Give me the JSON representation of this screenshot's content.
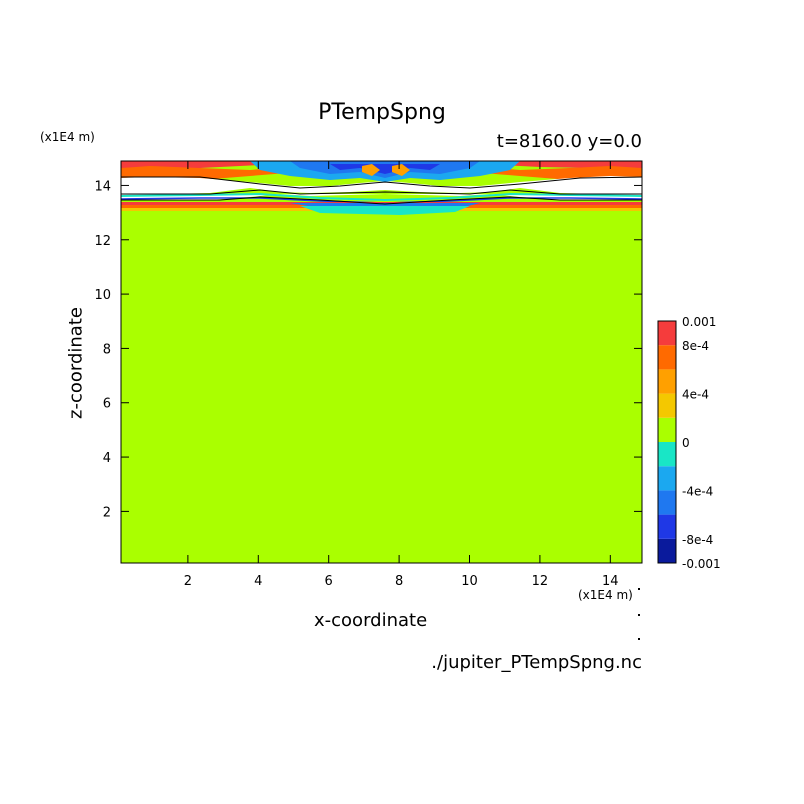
{
  "title": "PTempSpng",
  "subtitle": "t=8160.0 y=0.0",
  "z_unit": "(x1E4 m)",
  "x_unit": "(x1E4 m)",
  "source": "./jupiter_PTempSpng.nc",
  "chart_data": {
    "type": "heatmap",
    "title": "PTempSpng",
    "subtitle": "t=8160.0 y=0.0",
    "xlabel": "x-coordinate",
    "ylabel": "z-coordinate",
    "x_unit": "(x1E4 m)",
    "y_unit": "(x1E4 m)",
    "xlim": [
      0.1,
      14.9
    ],
    "ylim": [
      0.1,
      14.9
    ],
    "x_ticks": [
      2,
      4,
      6,
      8,
      10,
      12,
      14
    ],
    "y_ticks": [
      2,
      4,
      6,
      8,
      10,
      12,
      14
    ],
    "grid": false,
    "background_value": 0,
    "levels": [
      -0.001,
      -0.0008,
      -0.0006,
      -0.0004,
      -0.0002,
      0,
      0.0002,
      0.0004,
      0.0006,
      0.0008,
      0.001
    ],
    "colorbar_colors": [
      "#0a1a9c",
      "#1f38e6",
      "#1f78f0",
      "#1ba8f0",
      "#19e6c6",
      "#aaff00",
      "#f4c800",
      "#ffa000",
      "#ff6a00",
      "#f53c3c"
    ],
    "colorbar_ticks": [
      {
        "value": 0.001,
        "label": "0.001"
      },
      {
        "value": 0.0008,
        "label": "8e-4"
      },
      {
        "value": 0.0004,
        "label": "4e-4"
      },
      {
        "value": 0,
        "label": "0"
      },
      {
        "value": -0.0004,
        "label": "-4e-4"
      },
      {
        "value": -0.0008,
        "label": "-8e-4"
      },
      {
        "value": -0.001,
        "label": "-0.001"
      }
    ],
    "source": "./jupiter_PTempSpng.nc"
  }
}
